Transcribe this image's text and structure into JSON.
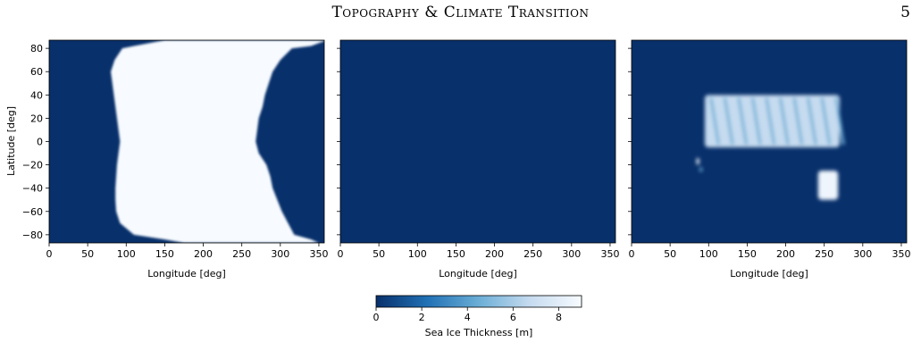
{
  "header": {
    "running_title": "Topography & Climate Transition",
    "page_number": "5"
  },
  "colors": {
    "low": "#08306b",
    "mid": "#4292c6",
    "high": "#f7fbff"
  },
  "chart_data": [
    {
      "type": "heatmap",
      "panel": "left",
      "xlabel": "Longitude [deg]",
      "ylabel": "Latitude [deg]",
      "xlim": [
        0,
        357
      ],
      "ylim": [
        -87,
        87
      ],
      "xticks": [
        "0",
        "50",
        "100",
        "150",
        "200",
        "250",
        "300",
        "350"
      ],
      "yticks": [
        "80",
        "60",
        "40",
        "20",
        "0",
        "−20",
        "−40",
        "−60",
        "−80"
      ],
      "ice_region": {
        "lat": [
          87,
          82,
          80,
          70,
          60,
          50,
          40,
          30,
          20,
          10,
          0,
          -10,
          -20,
          -30,
          -40,
          -50,
          -60,
          -70,
          -80,
          -84,
          -87
        ],
        "west_lon": [
          150,
          110,
          95,
          85,
          80,
          82,
          84,
          86,
          88,
          90,
          92,
          90,
          88,
          87,
          86,
          86,
          87,
          92,
          110,
          150,
          175
        ],
        "east_lon": [
          360,
          340,
          315,
          300,
          290,
          285,
          280,
          277,
          272,
          270,
          268,
          272,
          282,
          287,
          290,
          296,
          302,
          310,
          318,
          340,
          350
        ]
      }
    },
    {
      "type": "heatmap",
      "panel": "middle",
      "xlabel": "Longitude [deg]",
      "xlim": [
        0,
        357
      ],
      "ylim": [
        -87,
        87
      ],
      "xticks": [
        "0",
        "50",
        "100",
        "150",
        "200",
        "250",
        "300",
        "350"
      ],
      "note_values": "uniform 0 m (no sea ice)"
    },
    {
      "type": "heatmap",
      "panel": "right",
      "xlabel": "Longitude [deg]",
      "xlim": [
        0,
        357
      ],
      "ylim": [
        -87,
        87
      ],
      "xticks": [
        "0",
        "50",
        "100",
        "150",
        "200",
        "250",
        "300",
        "350"
      ],
      "ice_patches": [
        {
          "lon": [
            95,
            270
          ],
          "lat": [
            -5,
            40
          ],
          "value": 6.5
        },
        {
          "lon": [
            242,
            268
          ],
          "lat": [
            -50,
            -25
          ],
          "value": 7.5
        },
        {
          "lon": [
            84,
            88
          ],
          "lat": [
            -20,
            -14
          ],
          "value": 8.5
        },
        {
          "lon": [
            88,
            92
          ],
          "lat": [
            -26,
            -22
          ],
          "value": 5.0
        }
      ]
    }
  ],
  "colorbar": {
    "label": "Sea Ice Thickness [m]",
    "ticks": [
      "0",
      "2",
      "4",
      "6",
      "8"
    ],
    "tick_values": [
      0,
      2,
      4,
      6,
      8
    ],
    "range": [
      0,
      9
    ]
  }
}
